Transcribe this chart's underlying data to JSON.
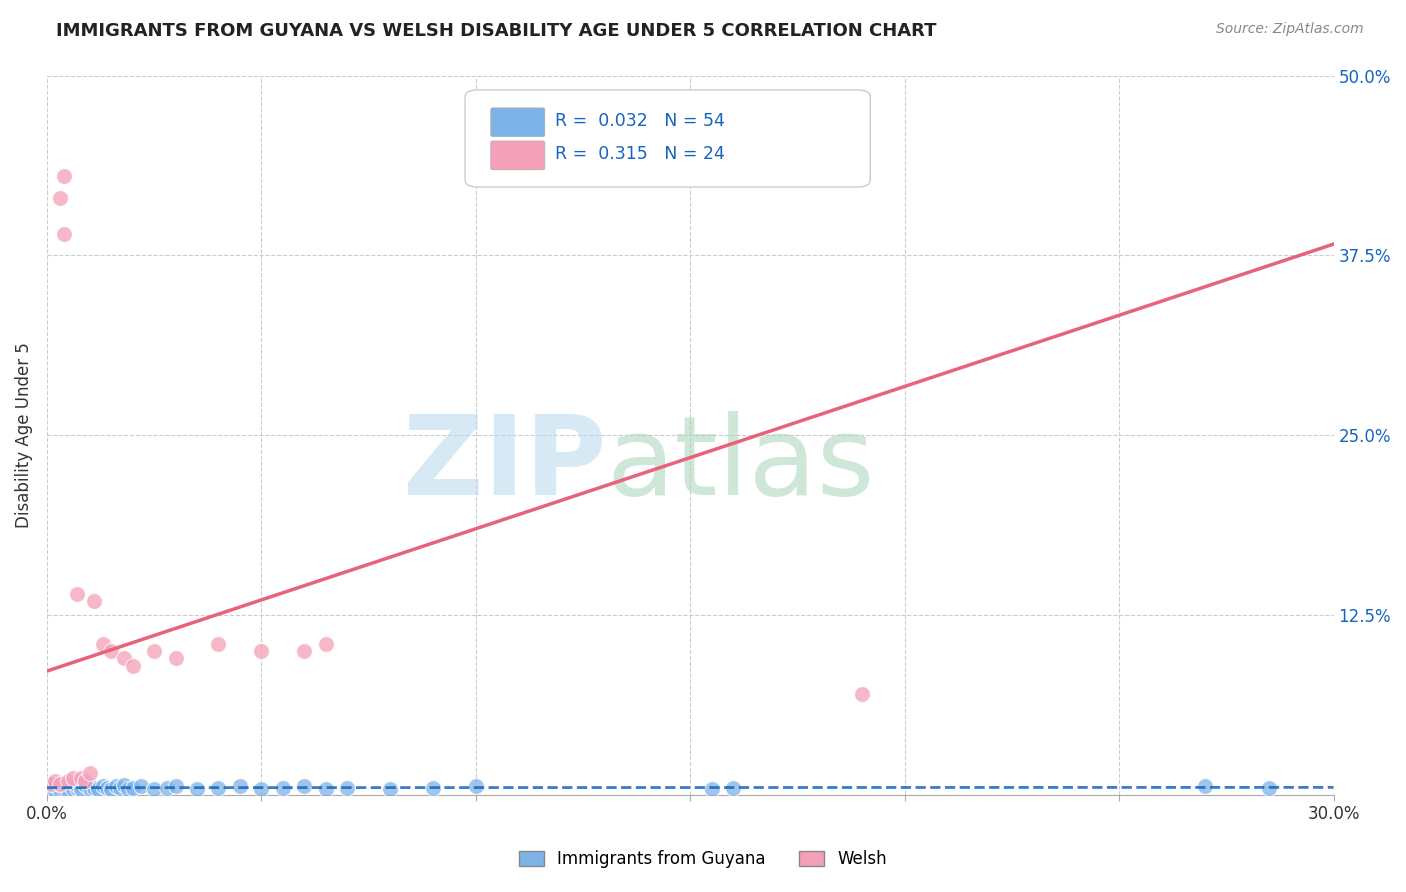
{
  "title": "IMMIGRANTS FROM GUYANA VS WELSH DISABILITY AGE UNDER 5 CORRELATION CHART",
  "source": "Source: ZipAtlas.com",
  "ylabel_label": "Disability Age Under 5",
  "xlim": [
    0.0,
    0.3
  ],
  "ylim": [
    0.0,
    0.5
  ],
  "xtick_vals": [
    0.0,
    0.05,
    0.1,
    0.15,
    0.2,
    0.25,
    0.3
  ],
  "xtick_labels": [
    "0.0%",
    "",
    "",
    "",
    "",
    "",
    "30.0%"
  ],
  "ytick_labels_right": [
    "",
    "12.5%",
    "25.0%",
    "37.5%",
    "50.0%"
  ],
  "ytick_vals_right": [
    0.0,
    0.125,
    0.25,
    0.375,
    0.5
  ],
  "blue_R": "0.032",
  "blue_N": "54",
  "pink_R": "0.315",
  "pink_N": "24",
  "blue_color": "#7EB3E8",
  "pink_color": "#F4A0B8",
  "blue_line_color": "#1565C0",
  "pink_line_color": "#E8637A",
  "grid_color": "#CCCCCC",
  "background_color": "#FFFFFF",
  "blue_scatter_x": [
    0.001,
    0.001,
    0.001,
    0.002,
    0.002,
    0.002,
    0.002,
    0.003,
    0.003,
    0.003,
    0.004,
    0.004,
    0.004,
    0.005,
    0.005,
    0.005,
    0.006,
    0.006,
    0.007,
    0.007,
    0.008,
    0.008,
    0.009,
    0.01,
    0.01,
    0.011,
    0.012,
    0.013,
    0.014,
    0.015,
    0.016,
    0.017,
    0.018,
    0.019,
    0.02,
    0.022,
    0.025,
    0.028,
    0.03,
    0.035,
    0.04,
    0.045,
    0.05,
    0.055,
    0.06,
    0.065,
    0.07,
    0.08,
    0.09,
    0.1,
    0.155,
    0.16,
    0.27,
    0.285
  ],
  "blue_scatter_y": [
    0.005,
    0.003,
    0.007,
    0.004,
    0.006,
    0.003,
    0.008,
    0.005,
    0.007,
    0.003,
    0.006,
    0.004,
    0.008,
    0.005,
    0.007,
    0.003,
    0.006,
    0.004,
    0.005,
    0.007,
    0.006,
    0.004,
    0.007,
    0.006,
    0.004,
    0.005,
    0.004,
    0.006,
    0.005,
    0.004,
    0.006,
    0.005,
    0.007,
    0.004,
    0.005,
    0.006,
    0.004,
    0.005,
    0.006,
    0.004,
    0.005,
    0.006,
    0.004,
    0.005,
    0.006,
    0.004,
    0.005,
    0.004,
    0.005,
    0.006,
    0.004,
    0.005,
    0.006,
    0.005
  ],
  "pink_scatter_x": [
    0.001,
    0.002,
    0.003,
    0.003,
    0.004,
    0.004,
    0.005,
    0.006,
    0.007,
    0.008,
    0.009,
    0.01,
    0.011,
    0.013,
    0.015,
    0.018,
    0.02,
    0.025,
    0.03,
    0.04,
    0.05,
    0.06,
    0.065,
    0.19
  ],
  "pink_scatter_y": [
    0.008,
    0.01,
    0.008,
    0.415,
    0.43,
    0.39,
    0.01,
    0.012,
    0.14,
    0.012,
    0.01,
    0.015,
    0.135,
    0.105,
    0.1,
    0.095,
    0.09,
    0.1,
    0.095,
    0.105,
    0.1,
    0.1,
    0.105,
    0.07
  ],
  "legend_blue_label": "Immigrants from Guyana",
  "legend_pink_label": "Welsh"
}
